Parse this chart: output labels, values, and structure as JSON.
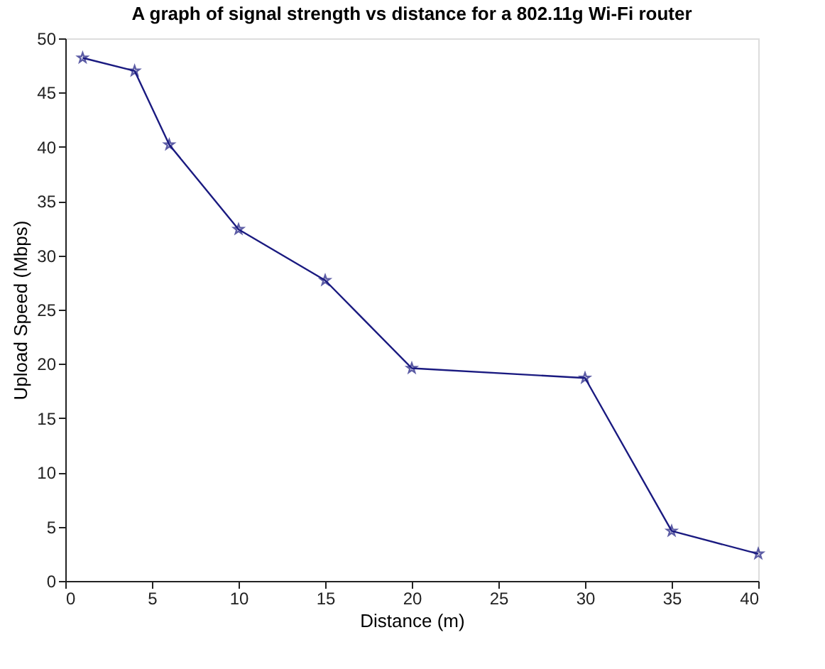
{
  "chart_data": {
    "type": "line",
    "title": "A graph of signal strength vs distance for a 802.11g Wi-Fi router",
    "xlabel": "Distance (m)",
    "ylabel": "Upload Speed (Mbps)",
    "x": [
      1,
      4,
      6,
      10,
      15,
      20,
      30,
      35,
      40
    ],
    "series": [
      {
        "color": "#1a1a80",
        "values": [
          48.2,
          47.0,
          40.2,
          32.4,
          27.7,
          19.6,
          18.7,
          4.6,
          2.5
        ]
      }
    ],
    "xlim": [
      0,
      40
    ],
    "ylim": [
      0,
      50
    ],
    "xticks": [
      0,
      5,
      10,
      15,
      20,
      25,
      30,
      35,
      40
    ],
    "yticks": [
      0,
      5,
      10,
      15,
      20,
      25,
      30,
      35,
      40,
      45,
      50
    ],
    "grid": false,
    "marker": "star",
    "line_style": "solid"
  }
}
